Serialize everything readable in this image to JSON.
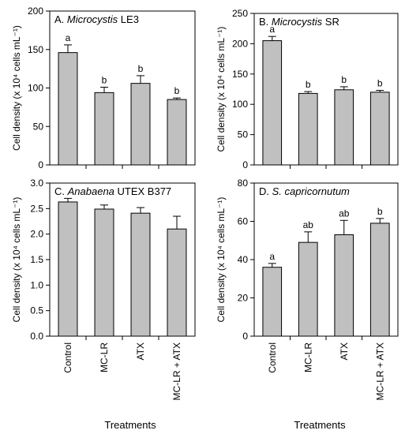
{
  "figure": {
    "x_title": "Treatments",
    "y_title": "Cell density (x 10⁴ cells mL⁻¹)"
  },
  "chart_data": [
    {
      "type": "bar",
      "panel_letter": "A.",
      "title_italic": "Microcystis",
      "title_rest": " LE3",
      "categories": [
        "Control",
        "MC-LR",
        "ATX",
        "MC-LR + ATX"
      ],
      "values": [
        146,
        94,
        106,
        85
      ],
      "errors": [
        10,
        7,
        10,
        2
      ],
      "letters": [
        "a",
        "b",
        "b",
        "b"
      ],
      "ylim": [
        0,
        200
      ],
      "yticks": [
        "0",
        "50",
        "100",
        "150",
        "200"
      ],
      "ylabel": "Cell density (x 10⁴ cells mL⁻¹)",
      "bar_color": "#c0c0c0"
    },
    {
      "type": "bar",
      "panel_letter": "B.",
      "title_italic": "Microcystis",
      "title_rest": " SR",
      "categories": [
        "Control",
        "MC-LR",
        "ATX",
        "MC-LR + ATX"
      ],
      "values": [
        205,
        118,
        124,
        120
      ],
      "errors": [
        7,
        3,
        5,
        3
      ],
      "letters": [
        "a",
        "b",
        "b",
        "b"
      ],
      "ylim": [
        0,
        250
      ],
      "yticks": [
        "0",
        "50",
        "100",
        "150",
        "200",
        "250"
      ],
      "ylabel": "Cell density (x 10⁴ cells mL⁻¹)",
      "bar_color": "#c0c0c0"
    },
    {
      "type": "bar",
      "panel_letter": "C.",
      "title_italic": "Anabaena",
      "title_rest": " UTEX B377",
      "categories": [
        "Control",
        "MC-LR",
        "ATX",
        "MC-LR + ATX"
      ],
      "values": [
        2.63,
        2.49,
        2.41,
        2.1
      ],
      "errors": [
        0.07,
        0.08,
        0.11,
        0.25
      ],
      "letters": [
        "",
        "",
        "",
        ""
      ],
      "ylim": [
        0,
        3.0
      ],
      "yticks": [
        "0.0",
        "0.5",
        "1.0",
        "1.5",
        "2.0",
        "2.5",
        "3.0"
      ],
      "ylabel": "Cell density (x 10⁴ cells mL⁻¹)",
      "bar_color": "#c0c0c0"
    },
    {
      "type": "bar",
      "panel_letter": "D.",
      "title_italic": "S. capricornutum",
      "title_rest": "",
      "categories": [
        "Control",
        "MC-LR",
        "ATX",
        "MC-LR + ATX"
      ],
      "values": [
        36,
        49,
        53,
        59
      ],
      "errors": [
        2,
        5.5,
        7.5,
        2.5
      ],
      "letters": [
        "a",
        "ab",
        "ab",
        "b"
      ],
      "ylim": [
        0,
        80
      ],
      "yticks": [
        "0",
        "20",
        "40",
        "60",
        "80"
      ],
      "ylabel": "Cell density (x 10⁴ cells mL⁻¹)",
      "bar_color": "#c0c0c0"
    }
  ]
}
